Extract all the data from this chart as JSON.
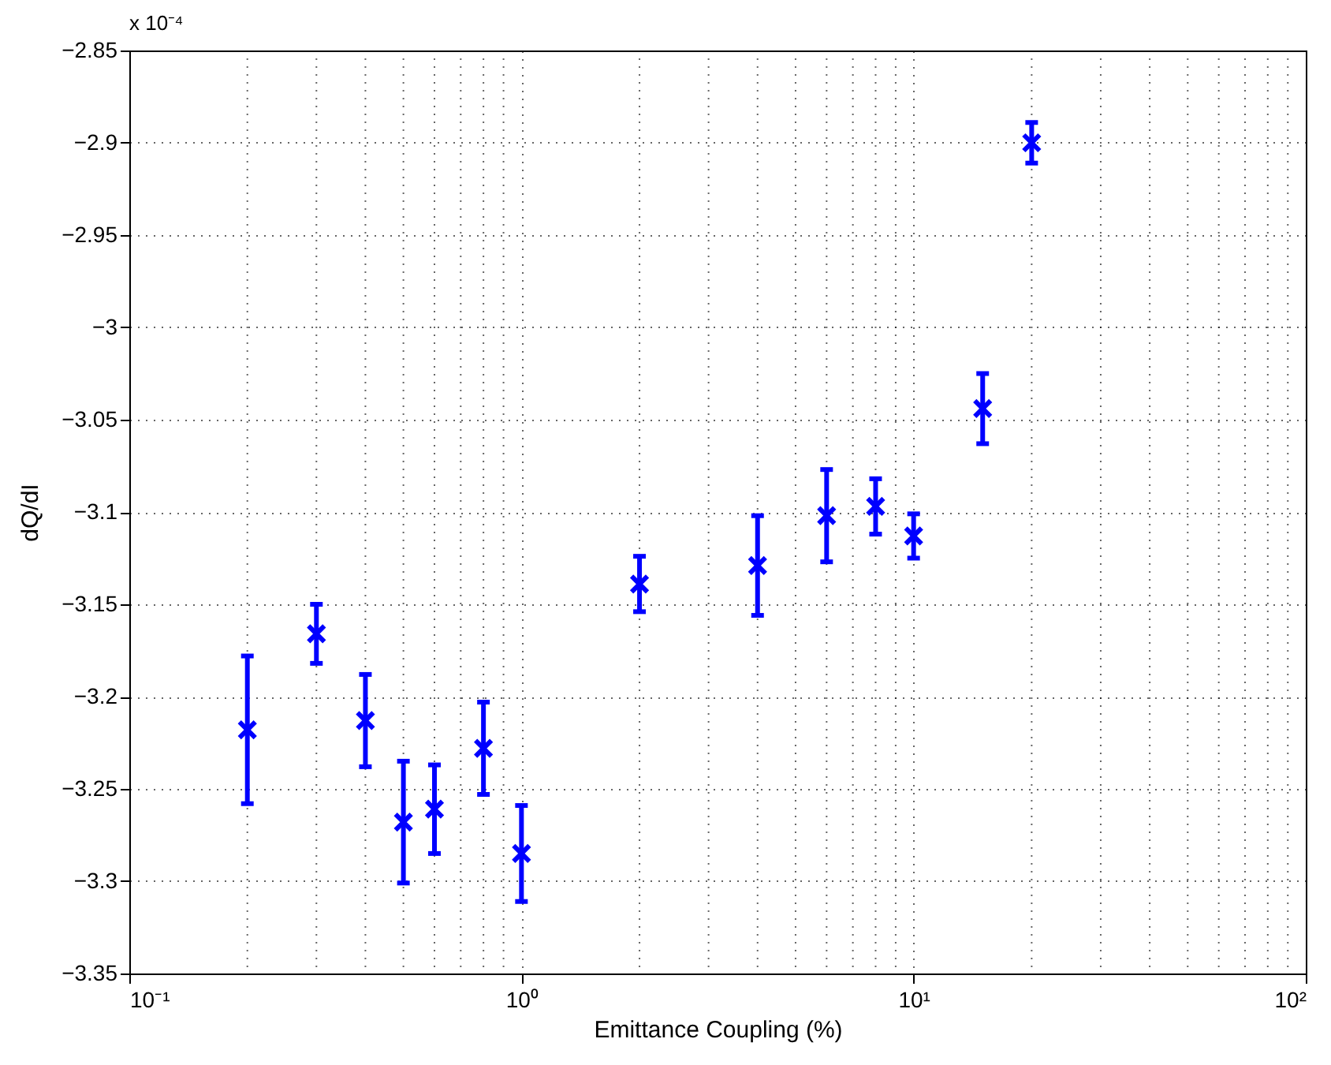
{
  "chart_data": {
    "type": "scatter",
    "xlabel": "Emittance Coupling (%)",
    "ylabel": "dQ/dI",
    "annotations": [
      "x 10⁻⁴"
    ],
    "x": [
      0.2,
      0.3,
      0.4,
      0.5,
      0.6,
      0.8,
      1,
      2,
      4,
      6,
      8,
      10,
      15,
      20
    ],
    "series": [
      {
        "color": "#0000ff",
        "values": [
          -3.218,
          -3.166,
          -3.213,
          -3.268,
          -3.261,
          -3.228,
          -3.285,
          -3.139,
          -3.129,
          -3.102,
          -3.097,
          -3.113,
          -3.044,
          -2.9
        ],
        "errors": [
          0.04,
          0.016,
          0.025,
          0.033,
          0.024,
          0.025,
          0.026,
          0.015,
          0.027,
          0.025,
          0.015,
          0.012,
          0.019,
          0.011
        ]
      }
    ],
    "log": "x",
    "xlim": [
      0.1,
      100
    ],
    "xticks": [
      {
        "value": 0.1,
        "label": "10⁻¹"
      },
      {
        "value": 1,
        "label": "10⁰"
      },
      {
        "value": 10,
        "label": "10¹"
      },
      {
        "value": 100,
        "label": "10²"
      }
    ],
    "ylim": [
      -3.35,
      -2.85
    ],
    "yticks": [
      -3.35,
      -3.3,
      -3.25,
      -3.2,
      -3.15,
      -3.1,
      -3.05,
      -3,
      -2.95,
      -2.9,
      -2.85
    ],
    "grid": true,
    "marker": "cross"
  }
}
